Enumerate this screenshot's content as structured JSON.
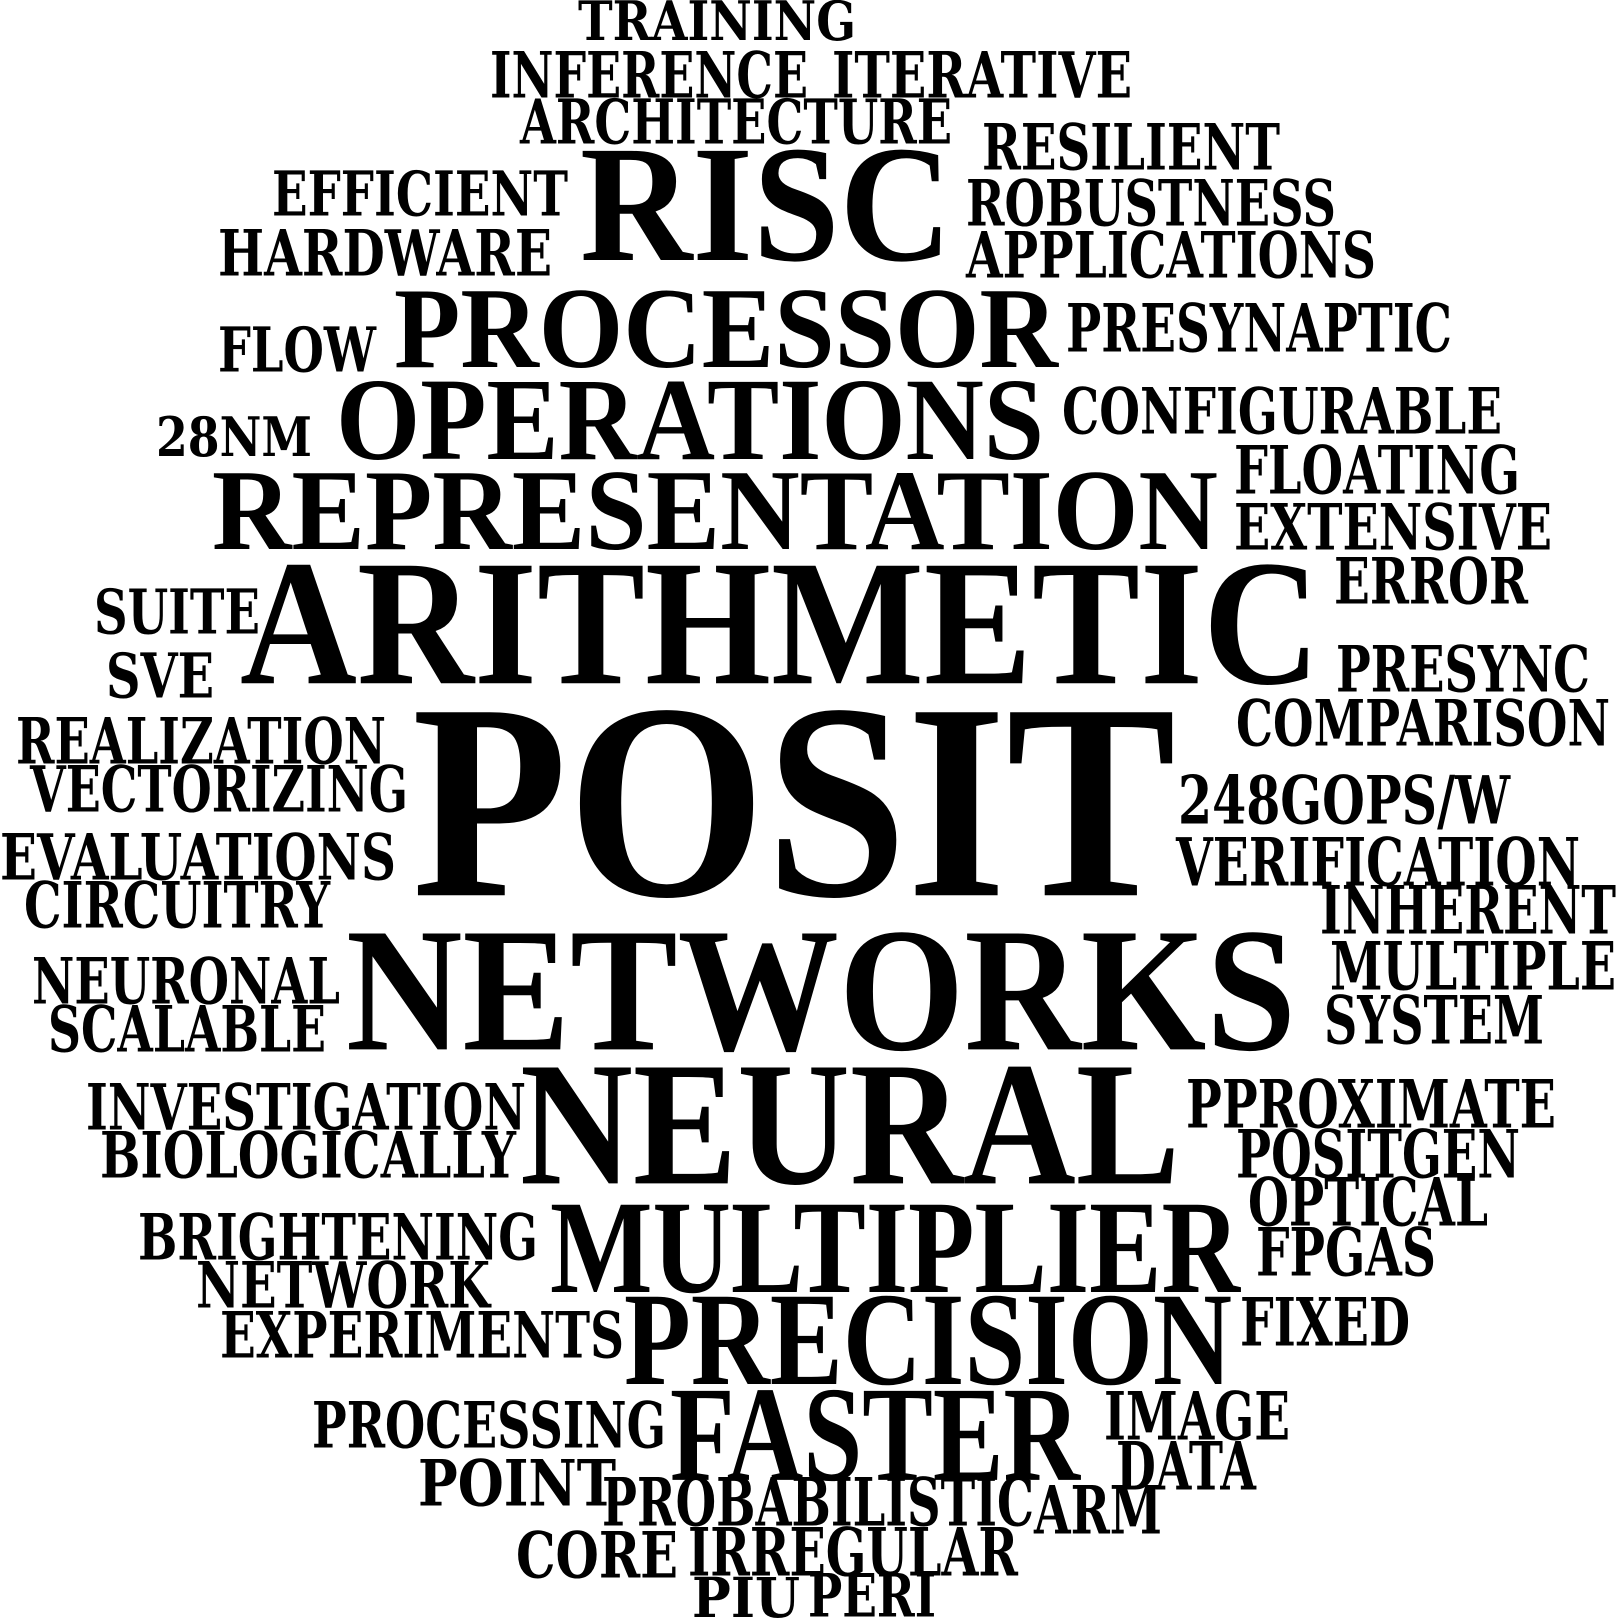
{
  "words": [
    {
      "id": "training",
      "text": "TRAINING"
    },
    {
      "id": "inference",
      "text": "INFERENCE"
    },
    {
      "id": "iterative",
      "text": "ITERATIVE"
    },
    {
      "id": "architecture",
      "text": "ARCHITECTURE"
    },
    {
      "id": "resilient",
      "text": "RESILIENT"
    },
    {
      "id": "efficient",
      "text": "EFFICIENT"
    },
    {
      "id": "risc",
      "text": "RISC"
    },
    {
      "id": "robustness",
      "text": "ROBUSTNESS"
    },
    {
      "id": "hardware",
      "text": "HARDWARE"
    },
    {
      "id": "applications",
      "text": "APPLICATIONS"
    },
    {
      "id": "flow",
      "text": "FLOW"
    },
    {
      "id": "processor",
      "text": "PROCESSOR"
    },
    {
      "id": "presynaptic",
      "text": "PRESYNAPTIC"
    },
    {
      "id": "28nm",
      "text": "28NM"
    },
    {
      "id": "operations",
      "text": "OPERATIONS"
    },
    {
      "id": "configurable",
      "text": "CONFIGURABLE"
    },
    {
      "id": "representation",
      "text": "REPRESENTATION"
    },
    {
      "id": "floating",
      "text": "FLOATING"
    },
    {
      "id": "extensive",
      "text": "EXTENSIVE"
    },
    {
      "id": "suite",
      "text": "SUITE"
    },
    {
      "id": "arithmetic",
      "text": "ARITHMETIC"
    },
    {
      "id": "error",
      "text": "ERROR"
    },
    {
      "id": "sve",
      "text": "SVE"
    },
    {
      "id": "presync",
      "text": "PRESYNC"
    },
    {
      "id": "realization",
      "text": "REALIZATION"
    },
    {
      "id": "posit",
      "text": "POSIT"
    },
    {
      "id": "comparison",
      "text": "COMPARISON"
    },
    {
      "id": "vectorizing",
      "text": "VECTORIZING"
    },
    {
      "id": "248gops",
      "text": "248GOPS/W"
    },
    {
      "id": "evaluations",
      "text": "EVALUATIONS"
    },
    {
      "id": "verification",
      "text": "VERIFICATION"
    },
    {
      "id": "circuitry",
      "text": "CIRCUITRY"
    },
    {
      "id": "inherent",
      "text": "INHERENT"
    },
    {
      "id": "neuronal",
      "text": "NEURONAL"
    },
    {
      "id": "networks",
      "text": "NETWORKS"
    },
    {
      "id": "multiple",
      "text": "MULTIPLE"
    },
    {
      "id": "scalable",
      "text": "SCALABLE"
    },
    {
      "id": "system",
      "text": "SYSTEM"
    },
    {
      "id": "investigation",
      "text": "INVESTIGATION"
    },
    {
      "id": "neural",
      "text": "NEURAL"
    },
    {
      "id": "pproximate",
      "text": "PPROXIMATE"
    },
    {
      "id": "biologically",
      "text": "BIOLOGICALLY"
    },
    {
      "id": "positgen",
      "text": "POSITGEN"
    },
    {
      "id": "optical",
      "text": "OPTICAL"
    },
    {
      "id": "brightening",
      "text": "BRIGHTENING"
    },
    {
      "id": "multiplier",
      "text": "MULTIPLIER"
    },
    {
      "id": "fpgas",
      "text": "FPGAS"
    },
    {
      "id": "network",
      "text": "NETWORK"
    },
    {
      "id": "experiments",
      "text": "EXPERIMENTS"
    },
    {
      "id": "precision",
      "text": "PRECISION"
    },
    {
      "id": "fixed",
      "text": "FIXED"
    },
    {
      "id": "processing",
      "text": "PROCESSING"
    },
    {
      "id": "faster",
      "text": "FASTER"
    },
    {
      "id": "image",
      "text": "IMAGE"
    },
    {
      "id": "data",
      "text": "DATA"
    },
    {
      "id": "point",
      "text": "POINT"
    },
    {
      "id": "probabilistic",
      "text": "PROBABILISTIC"
    },
    {
      "id": "arm",
      "text": "ARM"
    },
    {
      "id": "core",
      "text": "CORE"
    },
    {
      "id": "irregular",
      "text": "IRREGULAR"
    },
    {
      "id": "piu",
      "text": "PIU"
    },
    {
      "id": "peri",
      "text": "PERI"
    }
  ]
}
